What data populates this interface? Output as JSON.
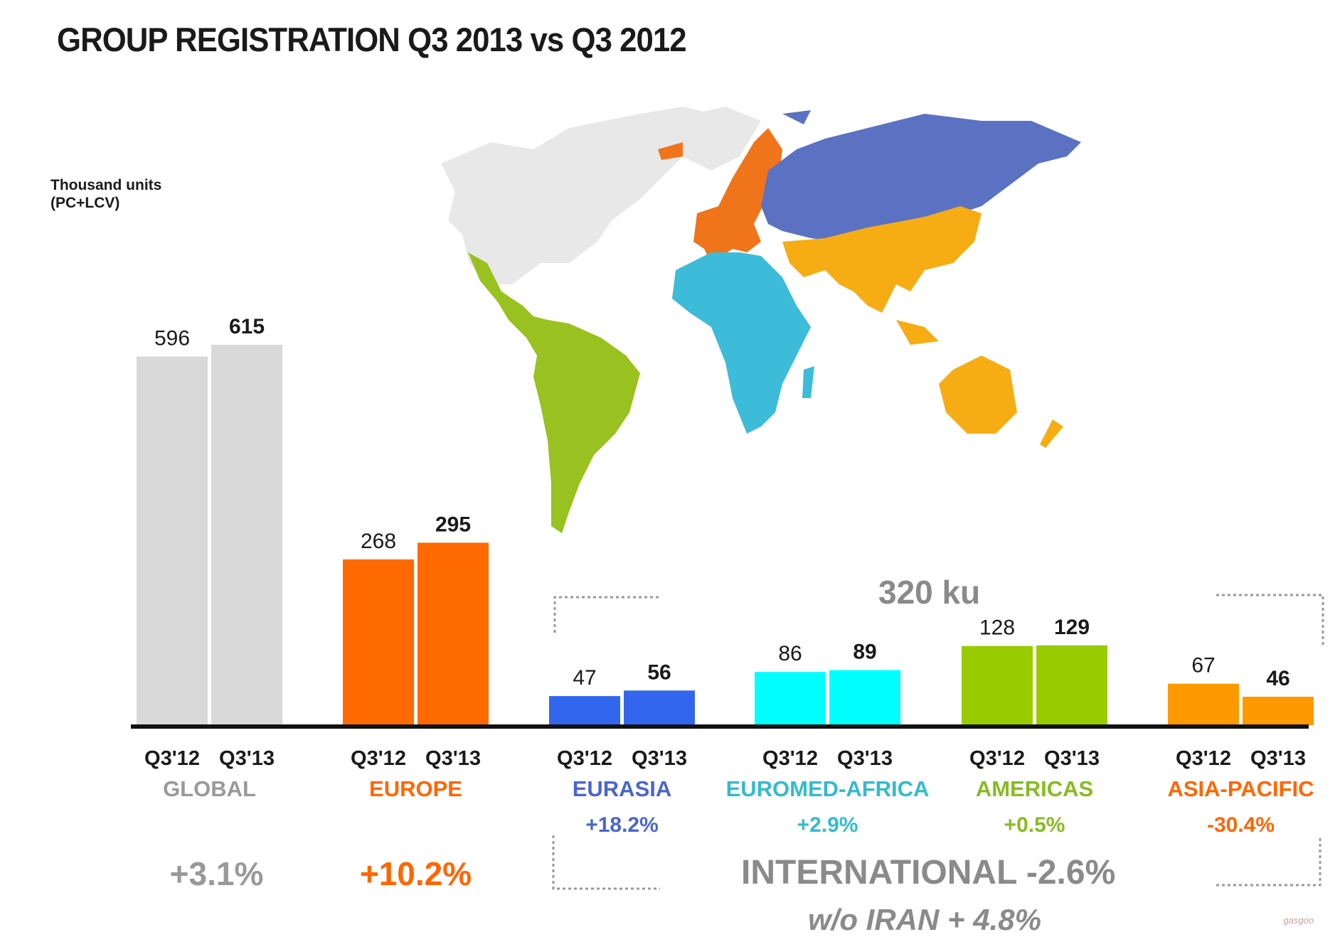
{
  "header": {
    "title": "GROUP REGISTRATION Q3 2013 vs Q3 2012",
    "unit_line1": "Thousand units",
    "unit_line2": "(PC+LCV)"
  },
  "international": {
    "total": "320 ku",
    "change": "INTERNATIONAL -2.6%",
    "without_iran": "w/o IRAN + 4.8%"
  },
  "watermark": "gasgoo",
  "chart_data": {
    "type": "bar",
    "period_labels": [
      "Q3'12",
      "Q3'13"
    ],
    "ylim": [
      0,
      615
    ],
    "series": [
      {
        "name": "Q3'12",
        "values": [
          596,
          268,
          47,
          86,
          128,
          67
        ]
      },
      {
        "name": "Q3'13",
        "values": [
          615,
          295,
          56,
          89,
          129,
          46
        ]
      }
    ],
    "categories": [
      "GLOBAL",
      "EUROPE",
      "EURASIA",
      "EUROMED-AFRICA",
      "AMERICAS",
      "ASIA-PACIFIC"
    ],
    "changes": [
      "+3.1%",
      "+10.2%",
      "+18.2%",
      "+2.9%",
      "+0.5%",
      "-30.4%"
    ],
    "colors": [
      "#d9d9d9",
      "#ff6a00",
      "#3366ee",
      "#00ffff",
      "#99cc00",
      "#ff9900"
    ],
    "label_colors": [
      "#999999",
      "#ff6600",
      "#4a66cc",
      "#33bbcc",
      "#88bb22",
      "#ff6600"
    ]
  },
  "map_colors": {
    "north_america": "#e8e8e8",
    "latin_america": "#99c11f",
    "europe": "#f07419",
    "eurasia": "#5b72c2",
    "africa_middle_east": "#3cbcd8",
    "asia_pacific": "#f6ad14"
  }
}
